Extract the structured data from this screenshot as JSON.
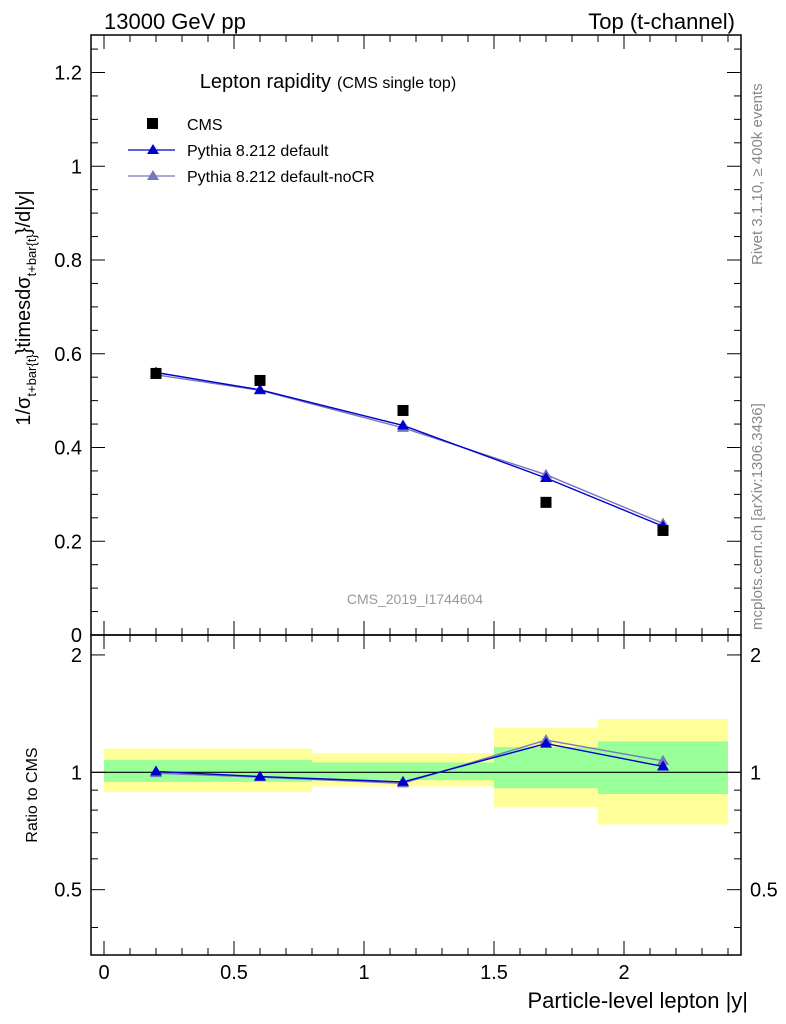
{
  "header": {
    "left": "13000 GeV pp",
    "right": "Top (t-channel)"
  },
  "side_labels": {
    "top": "Rivet 3.1.10, ≥ 400k events",
    "bottom": "mcplots.cern.ch [arXiv:1306.3436]"
  },
  "colors": {
    "data": "#000000",
    "default": "#0000cc",
    "noCR": "#7777bb",
    "band_inner": "#99ff99",
    "band_outer": "#ffff99"
  },
  "chart_data": [
    {
      "type": "scatter",
      "panel": "main",
      "title": "Lepton rapidity",
      "subtitle": "(CMS single top)",
      "analysis_label": "CMS_2019_I1744604",
      "ylabel": "1/σ_{t+bar{t}}timesdσ_{t+bar{t}}/d|y|",
      "ylabel_parts": {
        "p1": "1/σ",
        "s1": "t+bar{t}",
        "p2": "}timesdσ",
        "s2": "t+bar{t}",
        "p3": "}/d|y|"
      },
      "xlim": [
        -0.05,
        2.45
      ],
      "ylim": [
        0,
        1.28
      ],
      "y_ticks": [
        0,
        0.2,
        0.4,
        0.6,
        0.8,
        1,
        1.2
      ],
      "y_tick_labels": [
        "0",
        "0.2",
        "0.4",
        "0.6",
        "0.8",
        "1",
        "1.2"
      ],
      "legend": [
        "CMS",
        "Pythia 8.212 default",
        "Pythia 8.212 default-noCR"
      ],
      "bin_edges": [
        0,
        0.4,
        0.8,
        1.5,
        1.9,
        2.4
      ],
      "x": [
        0.2,
        0.6,
        1.15,
        1.7,
        2.15
      ],
      "series": [
        {
          "name": "CMS",
          "values": [
            0.558,
            0.543,
            0.479,
            0.283,
            0.223
          ]
        },
        {
          "name": "Pythia 8.212 default",
          "values": [
            0.56,
            0.523,
            0.447,
            0.335,
            0.232
          ]
        },
        {
          "name": "Pythia 8.212 default-noCR",
          "values": [
            0.555,
            0.522,
            0.442,
            0.342,
            0.238
          ]
        }
      ]
    },
    {
      "type": "line",
      "panel": "ratio",
      "ylabel": "Ratio to CMS",
      "xlabel": "Particle-level lepton |y|",
      "xlim": [
        -0.05,
        2.45
      ],
      "ylim": [
        0.34,
        2.25
      ],
      "x_ticks": [
        0,
        0.5,
        1,
        1.5,
        2
      ],
      "x_tick_labels": [
        "0",
        "0.5",
        "1",
        "1.5",
        "2"
      ],
      "y_ticks": [
        0.5,
        1,
        2
      ],
      "y_tick_labels": [
        "0.5",
        "1",
        "2"
      ],
      "bin_edges": [
        0,
        0.4,
        0.8,
        1.5,
        1.9,
        2.4
      ],
      "band_inner": [
        [
          0.945,
          1.075
        ],
        [
          0.945,
          1.075
        ],
        [
          0.955,
          1.06
        ],
        [
          0.91,
          1.16
        ],
        [
          0.88,
          1.2
        ]
      ],
      "band_outer": [
        [
          0.89,
          1.15
        ],
        [
          0.89,
          1.15
        ],
        [
          0.92,
          1.12
        ],
        [
          0.815,
          1.3
        ],
        [
          0.735,
          1.37
        ]
      ],
      "x": [
        0.2,
        0.6,
        1.15,
        1.7,
        2.15
      ],
      "series": [
        {
          "name": "Pythia 8.212 default",
          "values": [
            1.005,
            0.975,
            0.945,
            1.185,
            1.035
          ]
        },
        {
          "name": "Pythia 8.212 default-noCR",
          "values": [
            0.995,
            0.972,
            0.937,
            1.21,
            1.07
          ]
        }
      ]
    }
  ]
}
